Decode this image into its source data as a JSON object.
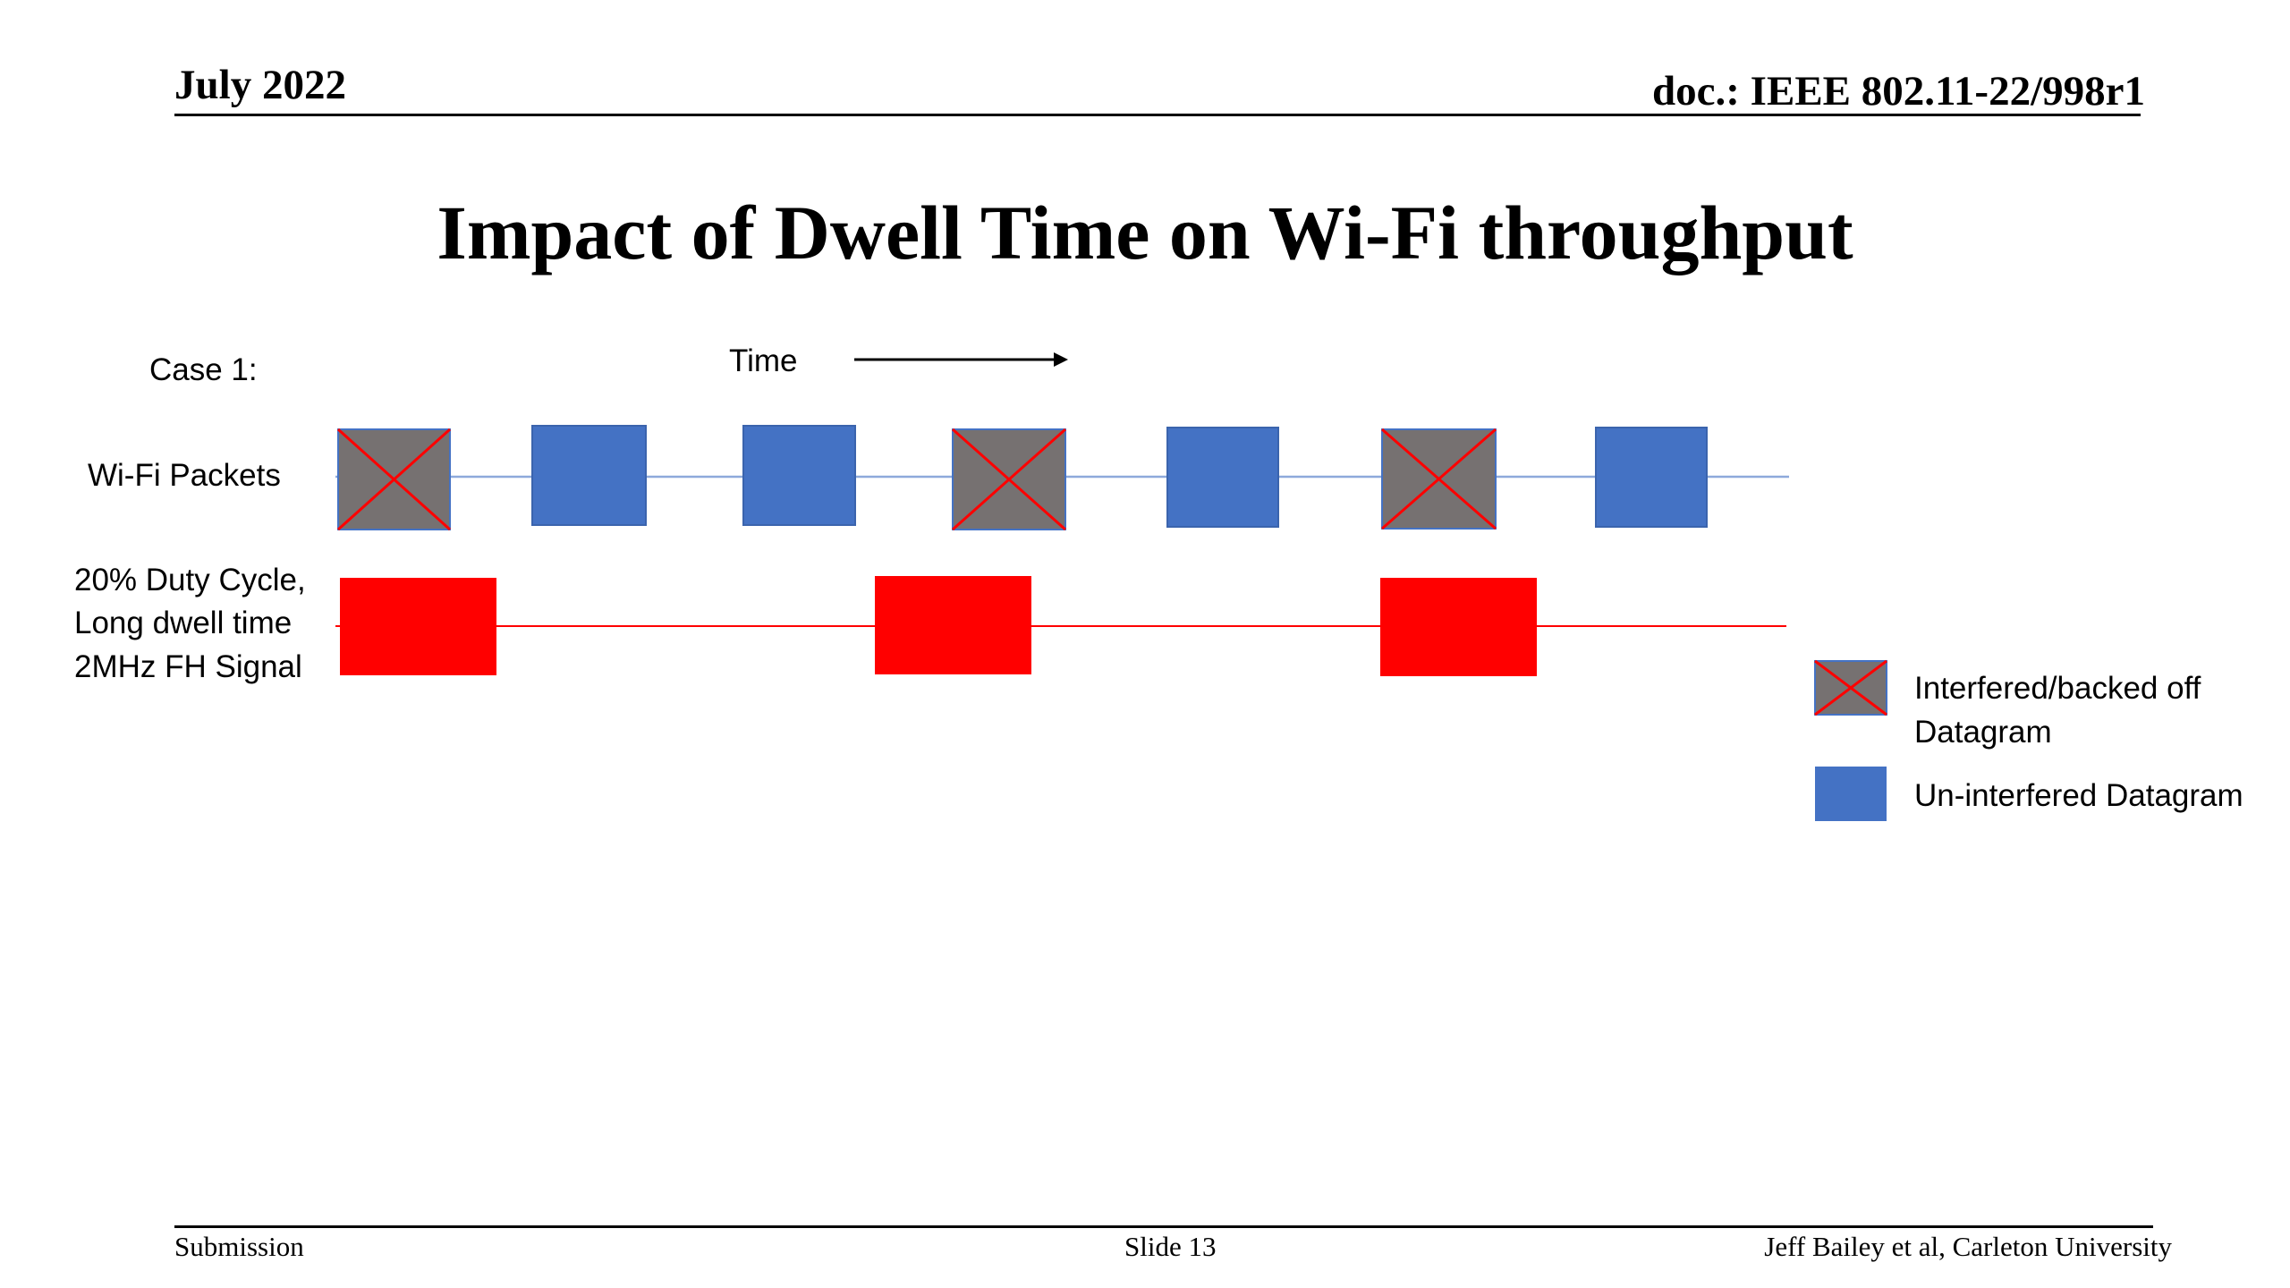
{
  "header": {
    "date": "July 2022",
    "doc": "doc.: IEEE 802.11-22/998r1"
  },
  "title": "Impact of Dwell Time on Wi-Fi throughput",
  "diagram": {
    "case_label": "Case 1:",
    "time_label": "Time",
    "wifi_label": "Wi-Fi Packets",
    "signal_label_lines": [
      "20% Duty Cycle,",
      "Long dwell time",
      "2MHz FH Signal"
    ],
    "packets": [
      "interfered",
      "clear",
      "clear",
      "interfered",
      "clear",
      "interfered",
      "clear"
    ],
    "colors": {
      "clear_packet": "#4472C4",
      "interfered_packet": "#767171",
      "cross": "#FF0000",
      "signal": "#FF0000",
      "wifi_line": "#8EA9DB",
      "signal_line": "#FF0000"
    }
  },
  "legend": {
    "interfered_lines": [
      "Interfered/backed off",
      "Datagram"
    ],
    "clear": "Un-interfered Datagram"
  },
  "footer": {
    "left": "Submission",
    "center": "Slide 13",
    "right": "Jeff Bailey et al, Carleton University"
  }
}
